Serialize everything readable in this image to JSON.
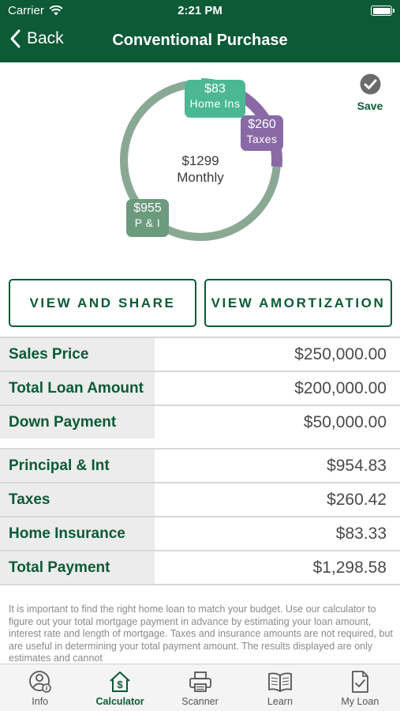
{
  "status_bar": {
    "carrier": "Carrier",
    "time": "2:21 PM"
  },
  "nav": {
    "back_label": "Back",
    "title": "Conventional Purchase"
  },
  "payment_summary": {
    "total_amount": "$1299",
    "total_label": "Monthly",
    "segments": [
      {
        "name": "home-ins",
        "amount": "$83",
        "label": "Home Ins",
        "value": 83.33,
        "color": "#4cb893"
      },
      {
        "name": "taxes",
        "amount": "$260",
        "label": "Taxes",
        "value": 260.42,
        "color": "#8a6aa6"
      },
      {
        "name": "pi",
        "amount": "$955",
        "label": "P & I",
        "value": 954.83,
        "color": "#6c9a7d"
      }
    ]
  },
  "save": {
    "label": "Save"
  },
  "actions": {
    "view_share": "VIEW AND SHARE",
    "view_amortization": "VIEW AMORTIZATION"
  },
  "loan_table": [
    {
      "label": "Sales Price",
      "value": "$250,000.00"
    },
    {
      "label": "Total Loan Amount",
      "value": "$200,000.00"
    },
    {
      "label": "Down Payment",
      "value": "$50,000.00"
    }
  ],
  "payment_table": [
    {
      "label": "Principal & Int",
      "value": "$954.83"
    },
    {
      "label": "Taxes",
      "value": "$260.42"
    },
    {
      "label": "Home Insurance",
      "value": "$83.33"
    },
    {
      "label": "Total Payment",
      "value": "$1,298.58"
    }
  ],
  "disclaimer": "It is important to find the right home loan to match your budget. Use our calculator to figure out your total mortgage payment in advance by estimating your loan amount, interest rate and length of mortgage. Taxes and insurance amounts are not required, but are useful in determining your total payment amount.  The results displayed are only estimates and cannot",
  "tabs": [
    {
      "label": "Info",
      "icon": "info-person-icon",
      "active": false
    },
    {
      "label": "Calculator",
      "icon": "calculator-house-icon",
      "active": true
    },
    {
      "label": "Scanner",
      "icon": "printer-icon",
      "active": false
    },
    {
      "label": "Learn",
      "icon": "book-icon",
      "active": false
    },
    {
      "label": "My Loan",
      "icon": "document-check-icon",
      "active": false
    }
  ],
  "colors": {
    "brand_green": "#0c5a36",
    "ring_base": "#8fac98",
    "label_bg": "#ececec"
  }
}
